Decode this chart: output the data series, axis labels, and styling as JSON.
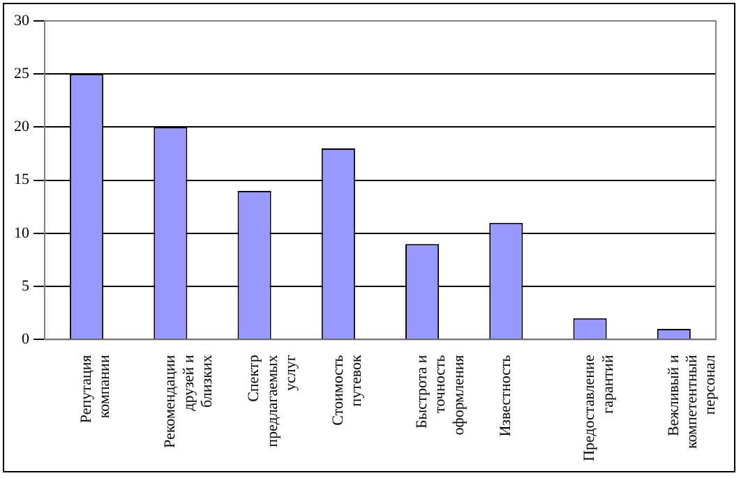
{
  "chart_data": {
    "type": "bar",
    "categories": [
      "Репутация компании",
      "Рекомендации друзей и близких",
      "Спектр предлагаемых услуг",
      "Стоимость путевок",
      "Быстрота и точность оформления",
      "Известность",
      "Предоставление гарантий",
      "Вежливый и компетентный персонал"
    ],
    "values": [
      25,
      20,
      14,
      18,
      9,
      11,
      2,
      1
    ],
    "color": "#9999ff",
    "ylim": [
      0,
      30
    ],
    "yticks": [
      0,
      5,
      10,
      15,
      20,
      25,
      30
    ],
    "grid": "y"
  }
}
